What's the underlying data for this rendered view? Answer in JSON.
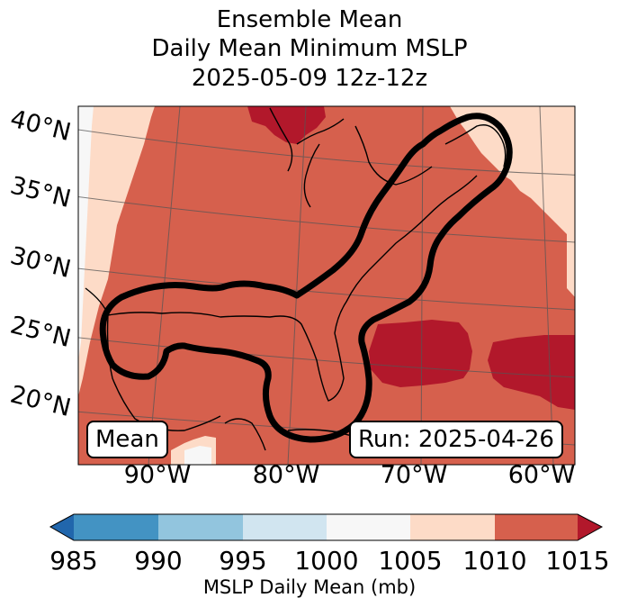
{
  "title": {
    "line1": "Ensemble Mean",
    "line2": "Daily Mean Minimum MSLP",
    "line3": "2025-05-09 12z-12z"
  },
  "map": {
    "lat_labels": [
      "40°N",
      "35°N",
      "30°N",
      "25°N",
      "20°N"
    ],
    "lon_labels": [
      "90°W",
      "80°W",
      "70°W",
      "60°W"
    ],
    "left_box": "Mean",
    "right_box": "Run: 2025-04-26",
    "contour_label": "ensemble probability outline (black)"
  },
  "colorbar": {
    "ticks": [
      "985",
      "990",
      "995",
      "1000",
      "1005",
      "1010",
      "1015"
    ],
    "label": "MSLP Daily Mean (mb)",
    "colors": [
      "#2166ac",
      "#4393c3",
      "#92c5de",
      "#d1e5f0",
      "#f7f7f7",
      "#fddbc7",
      "#d6604d",
      "#b2182b"
    ]
  }
}
